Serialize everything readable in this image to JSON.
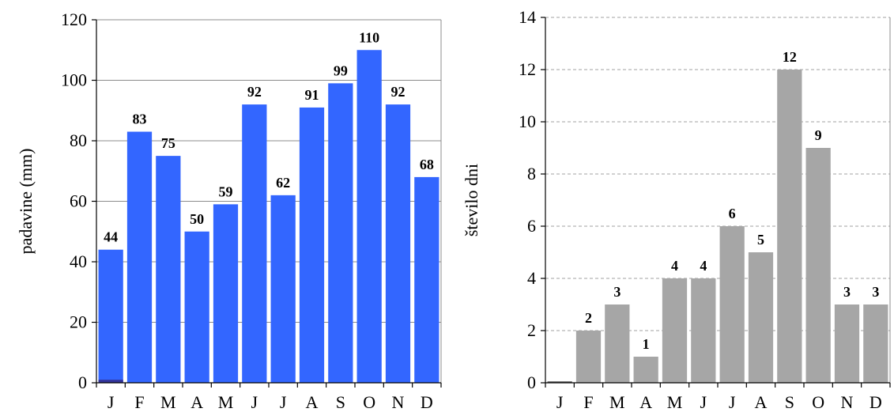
{
  "chart_data": [
    {
      "type": "bar",
      "title": "",
      "xlabel": "",
      "ylabel": "padavine (mm)",
      "ylim": [
        0,
        120
      ],
      "yticks": [
        0,
        20,
        40,
        60,
        80,
        100,
        120
      ],
      "grid": true,
      "categories": [
        "J",
        "F",
        "M",
        "A",
        "M",
        "J",
        "J",
        "A",
        "S",
        "O",
        "N",
        "D"
      ],
      "values": [
        44,
        83,
        75,
        50,
        59,
        92,
        62,
        91,
        99,
        110,
        92,
        68
      ],
      "data_labels": [
        "44",
        "83",
        "75",
        "50",
        "59",
        "92",
        "62",
        "91",
        "99",
        "110",
        "92",
        "68"
      ],
      "bar_color": "#3366ff",
      "secondary_values": [
        1,
        0,
        0,
        0,
        0,
        0,
        0,
        0,
        0,
        0,
        0,
        0
      ],
      "secondary_color": "#333399"
    },
    {
      "type": "bar",
      "title": "",
      "xlabel": "",
      "ylabel": "število dni",
      "ylim": [
        0,
        14
      ],
      "yticks": [
        0,
        2,
        4,
        6,
        8,
        10,
        12,
        14
      ],
      "grid": true,
      "categories": [
        "J",
        "F",
        "M",
        "A",
        "M",
        "J",
        "J",
        "A",
        "S",
        "O",
        "N",
        "D"
      ],
      "values": [
        0,
        2,
        3,
        1,
        4,
        4,
        6,
        5,
        12,
        9,
        3,
        3
      ],
      "data_labels": [
        "",
        "2",
        "3",
        "1",
        "4",
        "4",
        "6",
        "5",
        "12",
        "9",
        "3",
        "3"
      ],
      "bar_color": "#a6a6a6"
    }
  ]
}
